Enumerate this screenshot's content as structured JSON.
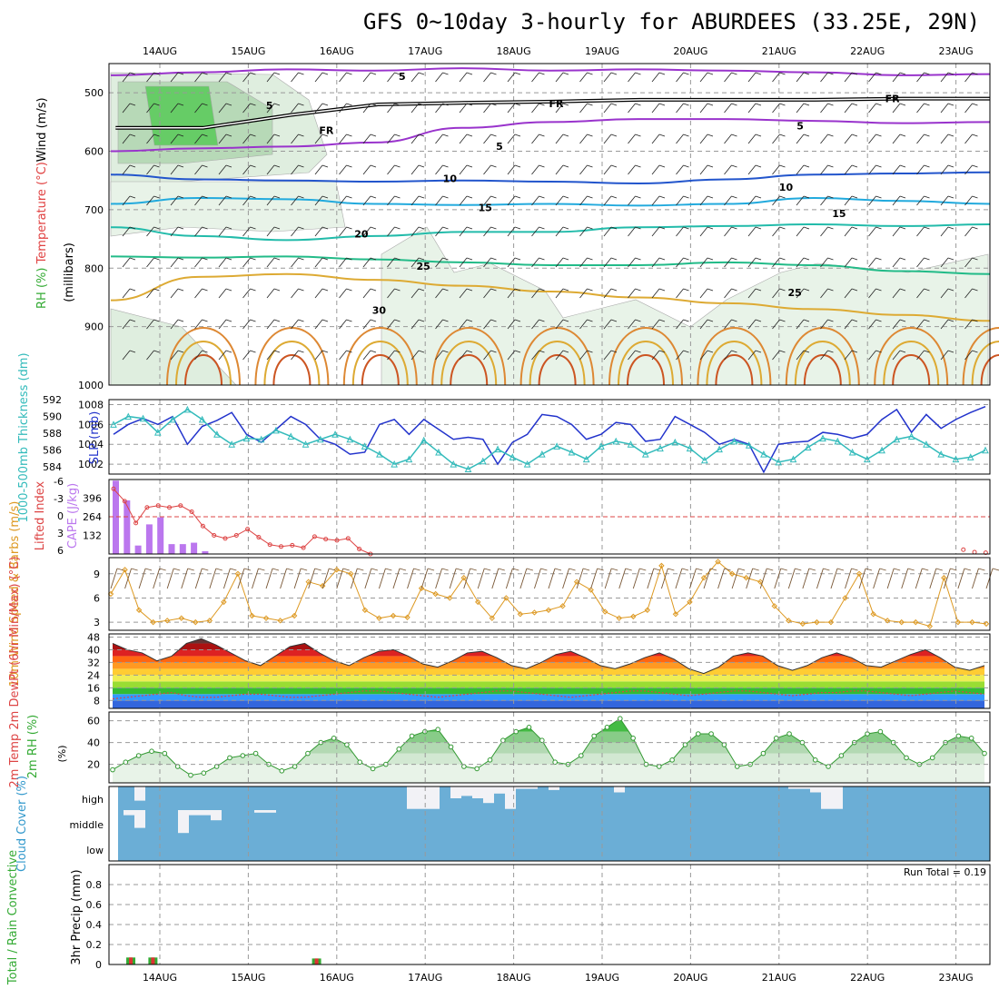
{
  "title": "GFS 0~10day 3-hourly for ABURDEES (33.25E, 29N)",
  "colors": {
    "temp_label": "#e04040",
    "rh_green": "#33bb33",
    "slp_blue": "#2233cc",
    "thick_cyan": "#33bbbb",
    "cape_purple": "#bb77ee",
    "lifted_red": "#dd4444",
    "wind_orange": "#dd9922",
    "cloud_blue": "#6baed6",
    "precip_green": "#33aa33",
    "precip_red": "#dd3333",
    "grid": "#999999"
  },
  "chart_data": [
    {
      "id": "upper",
      "type": "contour",
      "ylabel_parts": [
        "RH (%)",
        "Temperature (°C)",
        "Wind (m/s)"
      ],
      "ylabel2": "(millibars)",
      "x_labels": [
        "14AUG",
        "15AUG",
        "16AUG",
        "17AUG",
        "18AUG",
        "19AUG",
        "20AUG",
        "21AUG",
        "22AUG",
        "23AUG"
      ],
      "y_ticks": [
        500,
        600,
        700,
        800,
        900,
        1000
      ],
      "ylim": [
        450,
        1000
      ],
      "temp_contours": [
        {
          "label": "-5",
          "color": "#9933cc",
          "p": [
            470,
            465,
            460,
            462,
            458,
            462,
            460,
            462,
            465,
            470,
            468
          ]
        },
        {
          "label": "-5",
          "color": "#9933cc",
          "p": [
            600,
            595,
            592,
            585,
            560,
            550,
            545,
            545,
            548,
            552,
            550
          ]
        },
        {
          "label": "-10",
          "color": "#2255cc",
          "p": [
            640,
            648,
            650,
            652,
            650,
            652,
            655,
            648,
            640,
            638,
            636
          ]
        },
        {
          "label": "-15",
          "color": "#22aadd",
          "p": [
            690,
            680,
            682,
            690,
            692,
            690,
            693,
            690,
            680,
            685,
            690
          ]
        },
        {
          "label": "-20",
          "color": "#22bbaa",
          "p": [
            730,
            745,
            752,
            745,
            738,
            738,
            730,
            728,
            725,
            728,
            725
          ]
        },
        {
          "label": "-25",
          "color": "#22bb88",
          "p": [
            780,
            782,
            780,
            785,
            790,
            795,
            795,
            790,
            795,
            805,
            810
          ]
        },
        {
          "label": "30",
          "color": "#ddaa33",
          "p": [
            855,
            815,
            810,
            820,
            830,
            840,
            850,
            860,
            870,
            880,
            890
          ]
        }
      ],
      "temp_labels": [
        {
          "text": "5",
          "x": 2.7,
          "y": 470,
          "color": "#9933cc"
        },
        {
          "text": "5",
          "x": 1.2,
          "y": 520,
          "color": "#9933cc"
        },
        {
          "text": "5",
          "x": 3.8,
          "y": 590,
          "color": "#9933cc"
        },
        {
          "text": "5",
          "x": 7.2,
          "y": 555,
          "color": "#9933cc"
        },
        {
          "text": "10",
          "x": 3.2,
          "y": 645,
          "color": "#2255cc"
        },
        {
          "text": "10",
          "x": 7.0,
          "y": 660,
          "color": "#2255cc"
        },
        {
          "text": "15",
          "x": 3.6,
          "y": 695,
          "color": "#22aadd"
        },
        {
          "text": "15",
          "x": 7.6,
          "y": 705,
          "color": "#22aadd"
        },
        {
          "text": "20",
          "x": 2.2,
          "y": 740,
          "color": "#22bbaa"
        },
        {
          "text": "25",
          "x": 2.9,
          "y": 795,
          "color": "#22bb88"
        },
        {
          "text": "25",
          "x": 7.1,
          "y": 840,
          "color": "#22bb88"
        },
        {
          "text": "30",
          "x": 2.4,
          "y": 870,
          "color": "#ddaa33"
        },
        {
          "text": "FR",
          "x": 4.4,
          "y": 517,
          "color": "#000000"
        },
        {
          "text": "FR",
          "x": 8.2,
          "y": 508,
          "color": "#000000"
        },
        {
          "text": "FR",
          "x": 1.8,
          "y": 563,
          "color": "#000000"
        }
      ],
      "freezing_p": [
        560,
        560,
        538,
        520,
        517,
        515,
        512,
        512,
        512,
        510,
        510
      ]
    },
    {
      "id": "slp",
      "type": "line",
      "ylabel_left": "1000-500mb Thickness (dm)",
      "ylabel_right": "SLP (mb)",
      "left_ticks": [
        584,
        586,
        588,
        590,
        592
      ],
      "right_ticks": [
        1002,
        1004,
        1006,
        1008
      ],
      "right_lim": [
        1001,
        1008.5
      ],
      "series": [
        {
          "name": "SLP",
          "color": "#2233cc",
          "values": [
            1005.0,
            1006.0,
            1006.6,
            1006.0,
            1006.8,
            1004.0,
            1005.8,
            1006.4,
            1007.2,
            1005.0,
            1004.2,
            1005.5,
            1006.8,
            1006.0,
            1004.5,
            1004.0,
            1003.0,
            1003.2,
            1006.0,
            1006.5,
            1005.0,
            1006.5,
            1005.5,
            1004.5,
            1004.7,
            1004.5,
            1002.0,
            1004.2,
            1005.0,
            1007.0,
            1006.8,
            1006.0,
            1004.5,
            1005.0,
            1006.2,
            1006.0,
            1004.3,
            1004.5,
            1006.8,
            1006.0,
            1005.2,
            1004.0,
            1004.5,
            1004.0,
            1001.2,
            1004.0,
            1004.2,
            1004.3,
            1005.2,
            1005.0,
            1004.6,
            1005.0,
            1006.5,
            1007.5,
            1005.2,
            1007.0,
            1005.6,
            1006.5,
            1007.2,
            1007.8
          ]
        },
        {
          "name": "Thickness",
          "color": "#33bbbb",
          "values": [
            1006.0,
            1006.8,
            1006.6,
            1005.2,
            1006.5,
            1007.5,
            1006.5,
            1005.0,
            1004.0,
            1004.6,
            1004.5,
            1005.4,
            1004.8,
            1004.0,
            1004.5,
            1005.0,
            1004.5,
            1003.8,
            1003.0,
            1002.0,
            1002.5,
            1004.4,
            1003.2,
            1002.0,
            1001.5,
            1002.3,
            1003.5,
            1002.7,
            1002.0,
            1003.0,
            1003.8,
            1003.2,
            1002.5,
            1003.8,
            1004.3,
            1004.0,
            1003.0,
            1003.6,
            1004.2,
            1003.6,
            1002.4,
            1003.5,
            1004.3,
            1003.9,
            1003.0,
            1002.2,
            1002.5,
            1003.7,
            1004.6,
            1004.3,
            1003.2,
            1002.5,
            1003.4,
            1004.5,
            1004.8,
            1004.0,
            1003.0,
            1002.5,
            1002.7,
            1003.4
          ]
        }
      ]
    },
    {
      "id": "cape",
      "type": "bar+line",
      "ylabel_left": "Lifted Index",
      "ylabel_right": "CAPE (J/kg)",
      "li_ticks": [
        "-6",
        "-3",
        "0",
        "3",
        "6"
      ],
      "cape_ticks": [
        132,
        264,
        396
      ],
      "cape_lim": [
        0,
        528
      ],
      "li_lim": [
        6,
        -6
      ],
      "cape_values": [
        520,
        380,
        60,
        210,
        260,
        70,
        70,
        80,
        20
      ],
      "li_values": [
        -4.5,
        -2.5,
        1.0,
        -1.5,
        -1.8,
        -1.5,
        -1.8,
        -0.8,
        1.5,
        3.0,
        3.5,
        3.0,
        2.0,
        3.3,
        4.5,
        4.8,
        4.6,
        5.0,
        3.2,
        3.6,
        3.8,
        3.5,
        5.2,
        7.0
      ],
      "li_late": [
        {
          "x": 52.5,
          "v": 5.3
        },
        {
          "x": 53.5,
          "v": 5.7
        },
        {
          "x": 54.5,
          "v": 5.8
        },
        {
          "x": 57.5,
          "v": 5.6
        }
      ]
    },
    {
      "id": "wind10",
      "type": "line",
      "ylabel": "10m Wind Speed & Barbs (m/s)",
      "ticks": [
        3,
        6,
        9
      ],
      "ylim": [
        2,
        11
      ],
      "values": [
        6.5,
        9.5,
        4.5,
        3.0,
        3.2,
        3.5,
        3.0,
        3.2,
        5.5,
        9.0,
        3.8,
        3.5,
        3.2,
        3.8,
        8.0,
        7.5,
        9.5,
        9.0,
        4.5,
        3.5,
        3.8,
        3.6,
        7.2,
        6.5,
        6.0,
        8.5,
        5.5,
        3.5,
        6.0,
        4.0,
        4.2,
        4.5,
        5.0,
        8.0,
        7.0,
        4.3,
        3.5,
        3.7,
        4.5,
        10.0,
        4.0,
        5.5,
        8.5,
        10.5,
        9.0,
        8.5,
        8.0,
        5.0,
        3.2,
        2.8,
        3.0,
        3.0,
        6.0,
        9.0,
        4.0,
        3.2,
        3.0,
        3.0,
        2.5,
        8.5,
        3.0,
        3.0,
        2.8
      ]
    },
    {
      "id": "temp2m",
      "type": "area",
      "ylabel": "2m Temp 2m DewPt (6hr Min/Max) (°C)",
      "ticks": [
        8,
        16,
        24,
        32,
        40,
        48
      ],
      "ylim": [
        3,
        50
      ],
      "values": [
        44,
        40,
        38,
        33,
        36,
        44,
        47,
        43,
        38,
        33,
        30,
        36,
        42,
        44,
        38,
        33,
        30,
        35,
        39,
        40,
        36,
        31,
        29,
        33,
        38,
        39,
        35,
        30,
        28,
        32,
        37,
        39,
        35,
        30,
        28,
        31,
        35,
        38,
        34,
        28,
        25,
        29,
        36,
        38,
        36,
        30,
        27,
        30,
        35,
        38,
        35,
        30,
        29,
        33,
        37,
        40,
        35,
        29,
        27,
        30
      ],
      "dewpt": [
        9,
        10,
        11,
        12,
        13,
        11,
        10,
        10,
        11,
        12,
        12,
        11,
        10,
        10,
        11,
        12,
        13,
        14,
        14,
        13,
        12,
        11,
        10,
        11,
        12,
        13,
        14,
        14,
        13,
        12,
        11,
        10,
        11,
        12,
        13,
        14,
        14,
        13,
        12,
        11,
        12,
        13,
        14,
        14,
        13,
        12,
        11,
        12,
        13,
        13,
        14,
        14,
        13,
        12,
        11,
        12,
        13,
        14,
        13,
        12
      ]
    },
    {
      "id": "rh2m",
      "type": "area",
      "ylabel": "2m RH (%)",
      "ticks": [
        20,
        40,
        60
      ],
      "ylim": [
        3,
        68
      ],
      "values": [
        15,
        22,
        28,
        32,
        30,
        18,
        10,
        12,
        18,
        26,
        28,
        30,
        20,
        14,
        18,
        30,
        40,
        44,
        38,
        22,
        16,
        20,
        34,
        46,
        50,
        52,
        36,
        18,
        16,
        24,
        42,
        50,
        54,
        42,
        22,
        20,
        28,
        46,
        54,
        62,
        44,
        20,
        18,
        24,
        38,
        48,
        48,
        38,
        18,
        20,
        30,
        44,
        48,
        40,
        24,
        18,
        28,
        40,
        48,
        50,
        40,
        26,
        20,
        26,
        40,
        46,
        44,
        30
      ]
    },
    {
      "id": "cloud",
      "type": "bar",
      "ylabel": "Cloud Cover (%)",
      "levels": [
        "high",
        "middle",
        "low"
      ],
      "high": [
        0,
        0,
        0,
        0,
        0,
        0,
        0,
        0,
        0,
        0,
        0,
        0,
        0,
        0,
        0,
        0,
        0,
        0,
        0,
        0,
        0,
        0,
        0,
        0,
        0,
        0,
        0,
        0,
        0,
        0,
        0,
        0,
        0,
        0,
        0,
        0,
        0,
        0,
        0,
        0,
        0,
        0,
        0,
        0,
        0,
        0,
        0,
        0,
        0,
        0,
        0,
        0,
        0,
        0,
        0,
        0,
        0,
        0,
        0,
        0,
        0,
        0,
        0,
        0,
        0,
        0,
        0,
        0,
        0,
        0,
        0,
        0,
        0,
        0,
        0,
        0,
        0,
        0,
        0,
        0
      ],
      "high_sparse": [
        {
          "x": 2,
          "v": 60
        },
        {
          "x": 27,
          "v": 95
        },
        {
          "x": 28,
          "v": 95
        },
        {
          "x": 29,
          "v": 95
        },
        {
          "x": 31,
          "v": 50
        },
        {
          "x": 32,
          "v": 40
        },
        {
          "x": 33,
          "v": 50
        },
        {
          "x": 34,
          "v": 70
        },
        {
          "x": 35,
          "v": 30
        },
        {
          "x": 36,
          "v": 95
        },
        {
          "x": 37,
          "v": 10
        },
        {
          "x": 38,
          "v": 10
        },
        {
          "x": 40,
          "v": 15
        },
        {
          "x": 46,
          "v": 25
        },
        {
          "x": 62,
          "v": 10
        },
        {
          "x": 63,
          "v": 10
        },
        {
          "x": 64,
          "v": 25
        },
        {
          "x": 65,
          "v": 95
        },
        {
          "x": 66,
          "v": 95
        }
      ],
      "mid_sparse": [
        {
          "x": 1,
          "v": 20
        },
        {
          "x": 2,
          "v": 70
        },
        {
          "x": 6,
          "v": 90
        },
        {
          "x": 7,
          "v": 20
        },
        {
          "x": 8,
          "v": 20
        },
        {
          "x": 9,
          "v": 40
        },
        {
          "x": 13,
          "v": 10
        },
        {
          "x": 14,
          "v": 10
        }
      ]
    },
    {
      "id": "precip",
      "type": "bar",
      "ylabel_left": "Total / Rain Convective",
      "ylabel": "3hr Precip (mm)",
      "note": "Run Total = 0.19",
      "ticks": [
        "0",
        "0.2",
        "0.4",
        "0.6",
        "0.8"
      ],
      "ylim": [
        0,
        1.0
      ],
      "bars": [
        {
          "x": 0.6,
          "v": 0.07
        },
        {
          "x": 0.85,
          "v": 0.07
        },
        {
          "x": 2.7,
          "v": 0.06
        }
      ]
    }
  ]
}
